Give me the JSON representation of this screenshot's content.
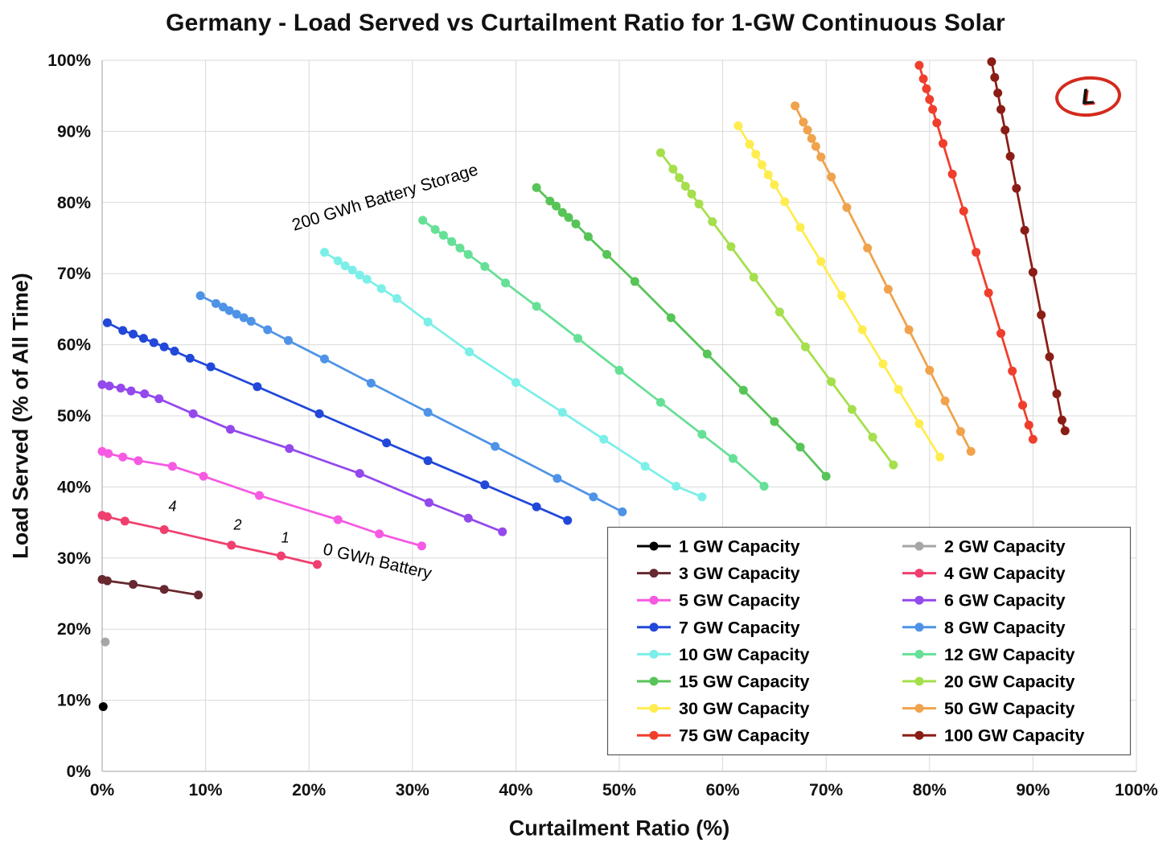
{
  "logo": {
    "letter": "L",
    "ring_color": "#D42A1E"
  },
  "chart_data": {
    "type": "line",
    "title": "Germany - Load Served vs Curtailment Ratio for 1-GW Continuous Solar",
    "xlabel": "Curtailment Ratio (%)",
    "ylabel": "Load Served (% of All Time)",
    "xlim": [
      0,
      100
    ],
    "ylim": [
      0,
      100
    ],
    "grid": true,
    "legend_position": "inside-bottom-right",
    "xtick_labels": [
      "0%",
      "10%",
      "20%",
      "30%",
      "40%",
      "50%",
      "60%",
      "70%",
      "80%",
      "90%",
      "100%"
    ],
    "ytick_labels": [
      "0%",
      "10%",
      "20%",
      "30%",
      "40%",
      "50%",
      "60%",
      "70%",
      "80%",
      "90%",
      "100%"
    ],
    "series": [
      {
        "name": "1 GW Capacity",
        "color": "#000000",
        "points": [
          [
            0.1,
            9.1
          ]
        ]
      },
      {
        "name": "2 GW Capacity",
        "color": "#A6A6A6",
        "points": [
          [
            0.3,
            18.2
          ]
        ]
      },
      {
        "name": "3 GW Capacity",
        "color": "#67282F",
        "points": [
          [
            0,
            27.0
          ],
          [
            0.5,
            26.8
          ],
          [
            3,
            26.3
          ],
          [
            6,
            25.6
          ],
          [
            9.3,
            24.8
          ]
        ]
      },
      {
        "name": "4 GW Capacity",
        "color": "#EF3F6E",
        "points": [
          [
            0,
            36.0
          ],
          [
            0.5,
            35.8
          ],
          [
            2.2,
            35.2
          ],
          [
            6,
            34.0
          ],
          [
            12.5,
            31.8
          ],
          [
            17.3,
            30.3
          ],
          [
            20.8,
            29.1
          ]
        ]
      },
      {
        "name": "5 GW Capacity",
        "color": "#F659E2",
        "points": [
          [
            0,
            45.0
          ],
          [
            0.6,
            44.7
          ],
          [
            2,
            44.2
          ],
          [
            3.5,
            43.7
          ],
          [
            6.8,
            42.9
          ],
          [
            9.8,
            41.5
          ],
          [
            15.2,
            38.8
          ],
          [
            22.8,
            35.4
          ],
          [
            26.8,
            33.4
          ],
          [
            30.9,
            31.7
          ]
        ]
      },
      {
        "name": "6 GW Capacity",
        "color": "#9349EC",
        "points": [
          [
            0,
            54.4
          ],
          [
            0.7,
            54.2
          ],
          [
            1.8,
            53.9
          ],
          [
            2.8,
            53.5
          ],
          [
            4.1,
            53.1
          ],
          [
            5.5,
            52.4
          ],
          [
            8.8,
            50.3
          ],
          [
            12.4,
            48.1
          ],
          [
            18.1,
            45.4
          ],
          [
            24.9,
            41.9
          ],
          [
            31.6,
            37.8
          ],
          [
            35.4,
            35.6
          ],
          [
            38.7,
            33.7
          ]
        ]
      },
      {
        "name": "7 GW Capacity",
        "color": "#2148D8",
        "points": [
          [
            0.5,
            63.1
          ],
          [
            2,
            62.0
          ],
          [
            3,
            61.5
          ],
          [
            4,
            60.9
          ],
          [
            5,
            60.3
          ],
          [
            6,
            59.7
          ],
          [
            7,
            59.1
          ],
          [
            8.5,
            58.1
          ],
          [
            10.5,
            56.9
          ],
          [
            15,
            54.1
          ],
          [
            21,
            50.3
          ],
          [
            27.5,
            46.2
          ],
          [
            31.5,
            43.7
          ],
          [
            37,
            40.3
          ],
          [
            42,
            37.2
          ],
          [
            45,
            35.3
          ]
        ]
      },
      {
        "name": "8 GW Capacity",
        "color": "#4E93E6",
        "points": [
          [
            9.5,
            66.9
          ],
          [
            11,
            65.8
          ],
          [
            11.7,
            65.3
          ],
          [
            12.3,
            64.8
          ],
          [
            13,
            64.3
          ],
          [
            13.7,
            63.8
          ],
          [
            14.4,
            63.3
          ],
          [
            16,
            62.1
          ],
          [
            18,
            60.6
          ],
          [
            21.5,
            58.0
          ],
          [
            26,
            54.6
          ],
          [
            31.5,
            50.5
          ],
          [
            38,
            45.7
          ],
          [
            44,
            41.2
          ],
          [
            47.5,
            38.6
          ],
          [
            50.3,
            36.5
          ]
        ]
      },
      {
        "name": "10 GW Capacity",
        "color": "#7BEFE8",
        "points": [
          [
            21.5,
            73.0
          ],
          [
            22.8,
            71.8
          ],
          [
            23.5,
            71.1
          ],
          [
            24.2,
            70.5
          ],
          [
            24.9,
            69.8
          ],
          [
            25.6,
            69.2
          ],
          [
            27,
            67.9
          ],
          [
            28.5,
            66.5
          ],
          [
            31.5,
            63.2
          ],
          [
            35.5,
            59.0
          ],
          [
            40,
            54.7
          ],
          [
            44.5,
            50.5
          ],
          [
            48.5,
            46.7
          ],
          [
            52.5,
            42.9
          ],
          [
            55.5,
            40.1
          ],
          [
            58,
            38.6
          ]
        ]
      },
      {
        "name": "12 GW Capacity",
        "color": "#66E096",
        "points": [
          [
            31,
            77.5
          ],
          [
            32.2,
            76.2
          ],
          [
            33,
            75.4
          ],
          [
            33.8,
            74.5
          ],
          [
            34.6,
            73.6
          ],
          [
            35.4,
            72.7
          ],
          [
            37,
            71.0
          ],
          [
            39,
            68.7
          ],
          [
            42,
            65.4
          ],
          [
            46,
            60.9
          ],
          [
            50,
            56.4
          ],
          [
            54,
            51.9
          ],
          [
            58,
            47.4
          ],
          [
            61,
            44.0
          ],
          [
            64,
            40.1
          ]
        ]
      },
      {
        "name": "15 GW Capacity",
        "color": "#57C457",
        "points": [
          [
            42,
            82.1
          ],
          [
            43.3,
            80.2
          ],
          [
            43.9,
            79.5
          ],
          [
            44.5,
            78.6
          ],
          [
            45.1,
            77.9
          ],
          [
            45.8,
            77.0
          ],
          [
            47,
            75.2
          ],
          [
            48.8,
            72.7
          ],
          [
            51.5,
            68.9
          ],
          [
            55,
            63.8
          ],
          [
            58.5,
            58.7
          ],
          [
            62,
            53.6
          ],
          [
            65,
            49.2
          ],
          [
            67.5,
            45.6
          ],
          [
            70,
            41.5
          ]
        ]
      },
      {
        "name": "20 GW Capacity",
        "color": "#A5DF4C",
        "points": [
          [
            54,
            87.0
          ],
          [
            55.2,
            84.7
          ],
          [
            55.8,
            83.5
          ],
          [
            56.4,
            82.3
          ],
          [
            57,
            81.2
          ],
          [
            57.7,
            79.8
          ],
          [
            59,
            77.3
          ],
          [
            60.8,
            73.8
          ],
          [
            63,
            69.5
          ],
          [
            65.5,
            64.6
          ],
          [
            68,
            59.7
          ],
          [
            70.5,
            54.8
          ],
          [
            72.5,
            50.9
          ],
          [
            74.5,
            47.0
          ],
          [
            76.5,
            43.1
          ]
        ]
      },
      {
        "name": "30 GW Capacity",
        "color": "#FFEC4F",
        "points": [
          [
            61.5,
            90.8
          ],
          [
            62.6,
            88.2
          ],
          [
            63.2,
            86.8
          ],
          [
            63.8,
            85.3
          ],
          [
            64.4,
            83.9
          ],
          [
            65,
            82.5
          ],
          [
            66,
            80.1
          ],
          [
            67.5,
            76.5
          ],
          [
            69.5,
            71.7
          ],
          [
            71.5,
            66.9
          ],
          [
            73.5,
            62.1
          ],
          [
            75.5,
            57.3
          ],
          [
            77,
            53.7
          ],
          [
            79,
            48.9
          ],
          [
            81,
            44.2
          ]
        ]
      },
      {
        "name": "50 GW Capacity",
        "color": "#F0A24C",
        "points": [
          [
            67,
            93.6
          ],
          [
            67.8,
            91.3
          ],
          [
            68.2,
            90.2
          ],
          [
            68.6,
            89.0
          ],
          [
            69,
            87.9
          ],
          [
            69.5,
            86.4
          ],
          [
            70.5,
            83.6
          ],
          [
            72,
            79.3
          ],
          [
            74,
            73.6
          ],
          [
            76,
            67.8
          ],
          [
            78,
            62.1
          ],
          [
            80,
            56.4
          ],
          [
            81.5,
            52.1
          ],
          [
            83,
            47.8
          ],
          [
            84,
            45.0
          ]
        ]
      },
      {
        "name": "75 GW Capacity",
        "color": "#F03E2D",
        "points": [
          [
            79,
            99.3
          ],
          [
            79.4,
            97.4
          ],
          [
            79.7,
            96.0
          ],
          [
            80,
            94.5
          ],
          [
            80.3,
            93.1
          ],
          [
            80.7,
            91.2
          ],
          [
            81.3,
            88.3
          ],
          [
            82.2,
            84.0
          ],
          [
            83.3,
            78.8
          ],
          [
            84.5,
            73.0
          ],
          [
            85.7,
            67.3
          ],
          [
            86.9,
            61.6
          ],
          [
            88,
            56.3
          ],
          [
            89,
            51.5
          ],
          [
            89.6,
            48.7
          ],
          [
            90,
            46.7
          ]
        ]
      },
      {
        "name": "100 GW Capacity",
        "color": "#8A1D15",
        "points": [
          [
            86,
            99.8
          ],
          [
            86.3,
            97.6
          ],
          [
            86.6,
            95.4
          ],
          [
            86.9,
            93.1
          ],
          [
            87.3,
            90.2
          ],
          [
            87.8,
            86.5
          ],
          [
            88.4,
            82.0
          ],
          [
            89.2,
            76.1
          ],
          [
            90,
            70.2
          ],
          [
            90.8,
            64.2
          ],
          [
            91.6,
            58.3
          ],
          [
            92.3,
            53.1
          ],
          [
            92.8,
            49.4
          ],
          [
            93.1,
            47.9
          ]
        ]
      }
    ],
    "annotations": [
      {
        "text": "200 GWh Battery Storage",
        "x": 27.5,
        "y": 80.0,
        "rotation": -17,
        "italic": false,
        "size": 21
      },
      {
        "text": "4",
        "x": 6.8,
        "y": 36.6,
        "rotation": 0,
        "italic": true,
        "size": 18
      },
      {
        "text": "2",
        "x": 13.1,
        "y": 34.0,
        "rotation": 0,
        "italic": true,
        "size": 18
      },
      {
        "text": "1",
        "x": 17.7,
        "y": 32.2,
        "rotation": 0,
        "italic": true,
        "size": 18
      },
      {
        "text": "0 GWh Battery",
        "x": 26.5,
        "y": 28.8,
        "rotation": 13,
        "italic": false,
        "size": 21
      }
    ],
    "legend": {
      "columns": 2,
      "order": [
        0,
        1,
        2,
        3,
        4,
        5,
        6,
        7,
        8,
        9,
        10,
        11,
        12,
        13,
        14,
        15
      ]
    },
    "colors": {
      "gridline": "#D9D9D9",
      "axis_line": "#BFBFBF",
      "text": "#111111",
      "legend_border": "#595959"
    }
  }
}
